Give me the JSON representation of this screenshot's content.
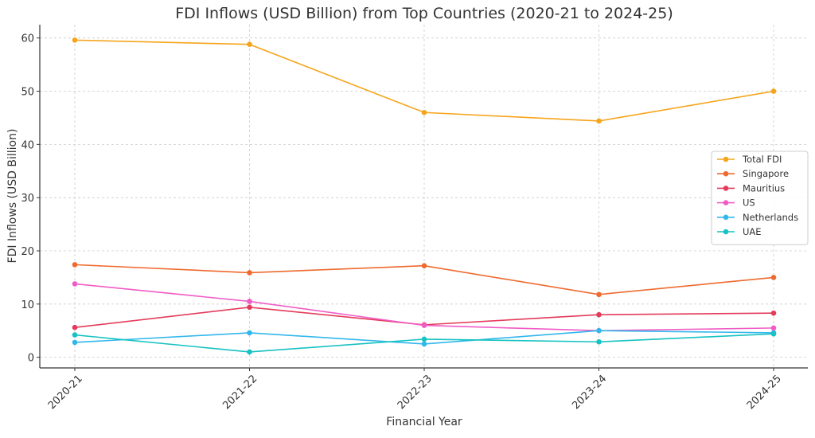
{
  "chart_data": {
    "type": "line",
    "title": "FDI Inflows (USD Billion) from Top Countries (2020-21 to 2024-25)",
    "xlabel": "Financial Year",
    "ylabel": "FDI Inflows (USD Billion)",
    "categories": [
      "2020-21",
      "2021-22",
      "2022-23",
      "2023-24",
      "2024-25"
    ],
    "ylim": [
      -2,
      62.5
    ],
    "yticks": [
      0,
      10,
      20,
      30,
      40,
      50,
      60
    ],
    "grid": true,
    "legend_position": "right",
    "series": [
      {
        "name": "Total FDI",
        "color": "#f5a51d",
        "values": [
          59.6,
          58.8,
          46.0,
          44.4,
          50.0
        ]
      },
      {
        "name": "Singapore",
        "color": "#ee6a2e",
        "values": [
          17.4,
          15.9,
          17.2,
          11.8,
          15.0
        ]
      },
      {
        "name": "Mauritius",
        "color": "#e33b5b",
        "values": [
          5.6,
          9.4,
          6.1,
          8.0,
          8.3
        ]
      },
      {
        "name": "US",
        "color": "#f05cc6",
        "values": [
          13.8,
          10.5,
          6.0,
          5.0,
          5.5
        ]
      },
      {
        "name": "Netherlands",
        "color": "#32b7ec",
        "values": [
          2.8,
          4.6,
          2.5,
          5.0,
          4.6
        ]
      },
      {
        "name": "UAE",
        "color": "#17c2c2",
        "values": [
          4.2,
          1.0,
          3.4,
          2.9,
          4.4
        ]
      }
    ]
  }
}
